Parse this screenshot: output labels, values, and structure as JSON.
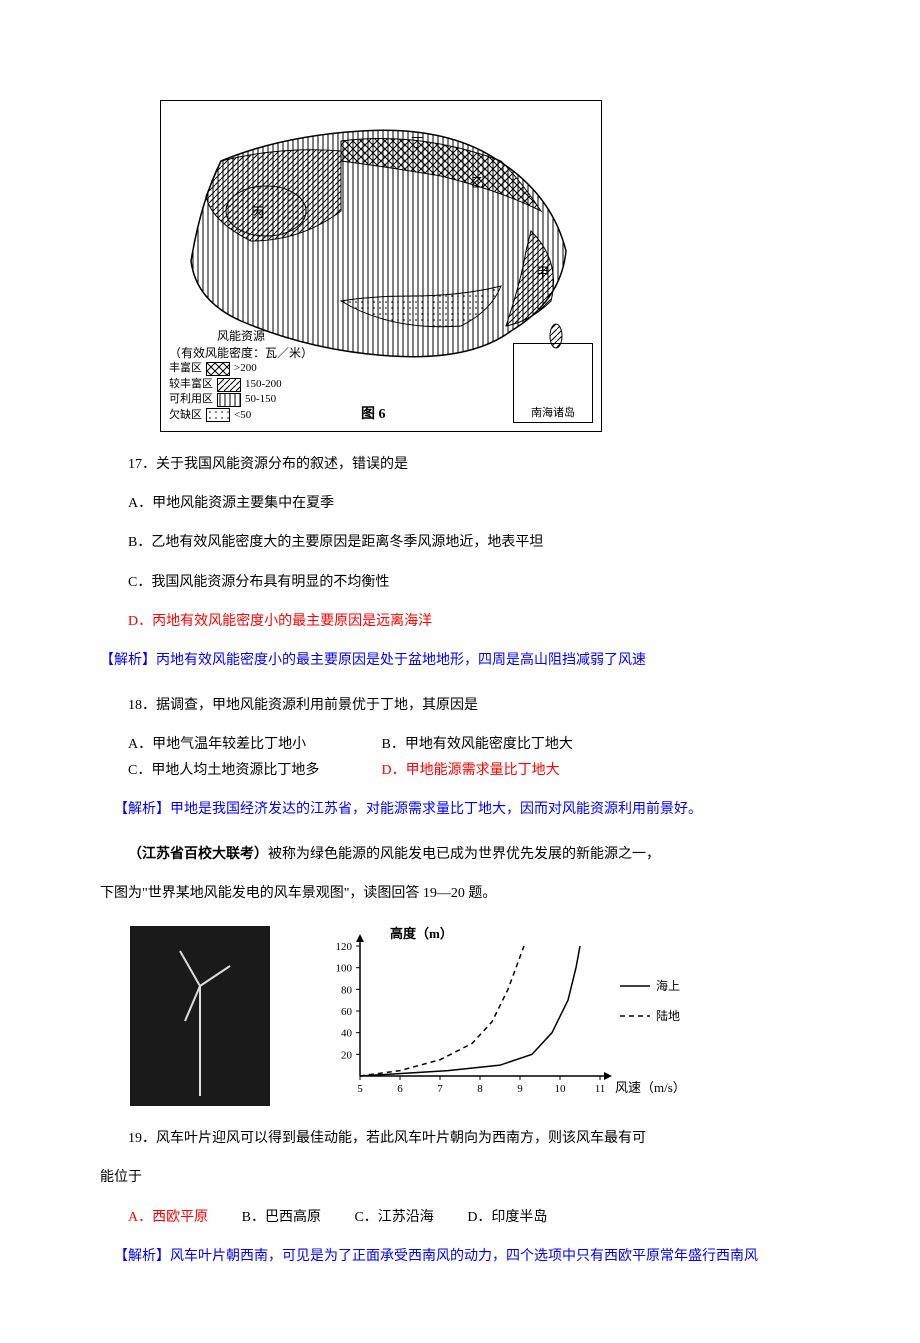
{
  "map": {
    "labels": {
      "ding": "丁",
      "yi": "乙",
      "bing": "丙",
      "jia": "甲"
    },
    "legend_title": "风能资源",
    "legend_subtitle": "（有效风能密度：瓦／米）",
    "legend_items": [
      {
        "name": "丰富区",
        "range": ">200",
        "pattern": "crosshatch"
      },
      {
        "name": "较丰富区",
        "range": "150-200",
        "pattern": "diag"
      },
      {
        "name": "可利用区",
        "range": "50-150",
        "pattern": "vert"
      },
      {
        "name": "欠缺区",
        "range": "<50",
        "pattern": "dots"
      }
    ],
    "nanhai": "南海诸岛",
    "caption": "图 6"
  },
  "q17": {
    "stem": "17．关于我国风能资源分布的叙述，错误的是",
    "A": "A．甲地风能资源主要集中在夏季",
    "B": "B．乙地有效风能密度大的主要原因是距离冬季风源地近，地表平坦",
    "C": "C．我国风能资源分布具有明显的不均衡性",
    "D": "D．丙地有效风能密度小的最主要原因是远离海洋",
    "analysis": "【解析】丙地有效风能密度小的最主要原因是处于盆地地形，四周是高山阻挡减弱了风速"
  },
  "q18": {
    "stem": "18．据调查，甲地风能资源利用前景优于丁地，其原因是",
    "A": "A．甲地气温年较差比丁地小",
    "B": "B．甲地有效风能密度比丁地大",
    "C": "C．甲地人均土地资源比丁地多",
    "D": "D．甲地能源需求量比丁地大",
    "analysis": "【解析】甲地是我国经济发达的江苏省，对能源需求量比丁地大，因而对风能资源利用前景好。"
  },
  "passage": {
    "source": "（江苏省百校大联考）",
    "text1": "被称为绿色能源的风能发电已成为世界优先发展的新能源之一，",
    "text2": "下图为\"世界某地风能发电的风车景观图\"，读图回答 19—20 题。"
  },
  "chart": {
    "y_title": "高度（m）",
    "x_title": "风速（m/s）",
    "y_ticks": [
      20,
      40,
      60,
      80,
      100,
      120
    ],
    "x_ticks": [
      5,
      6,
      7,
      8,
      9,
      10,
      11
    ],
    "series": [
      {
        "name": "海上",
        "style": "solid"
      },
      {
        "name": "陆地",
        "style": "dashed"
      }
    ],
    "colors": {
      "axis": "#000000",
      "solid": "#000000",
      "dashed": "#000000",
      "bg": "#ffffff"
    },
    "sea_points": [
      [
        5,
        0
      ],
      [
        7.2,
        5
      ],
      [
        8.5,
        10
      ],
      [
        9.3,
        20
      ],
      [
        9.8,
        40
      ],
      [
        10.2,
        70
      ],
      [
        10.4,
        100
      ],
      [
        10.5,
        120
      ]
    ],
    "land_points": [
      [
        5,
        0
      ],
      [
        6,
        5
      ],
      [
        7,
        15
      ],
      [
        7.8,
        30
      ],
      [
        8.3,
        50
      ],
      [
        8.7,
        80
      ],
      [
        9,
        110
      ],
      [
        9.1,
        120
      ]
    ]
  },
  "q19": {
    "stem": "19．风车叶片迎风可以得到最佳动能，若此风车叶片朝向为西南方，则该风车最有可",
    "stem2": "能位于",
    "A": "A．西欧平原",
    "B": "B．巴西高原",
    "C": "C．江苏沿海",
    "D": "D．印度半岛",
    "analysis": "【解析】风车叶片朝西南，可见是为了正面承受西南风的动力，四个选项中只有西欧平原常年盛行西南风"
  }
}
